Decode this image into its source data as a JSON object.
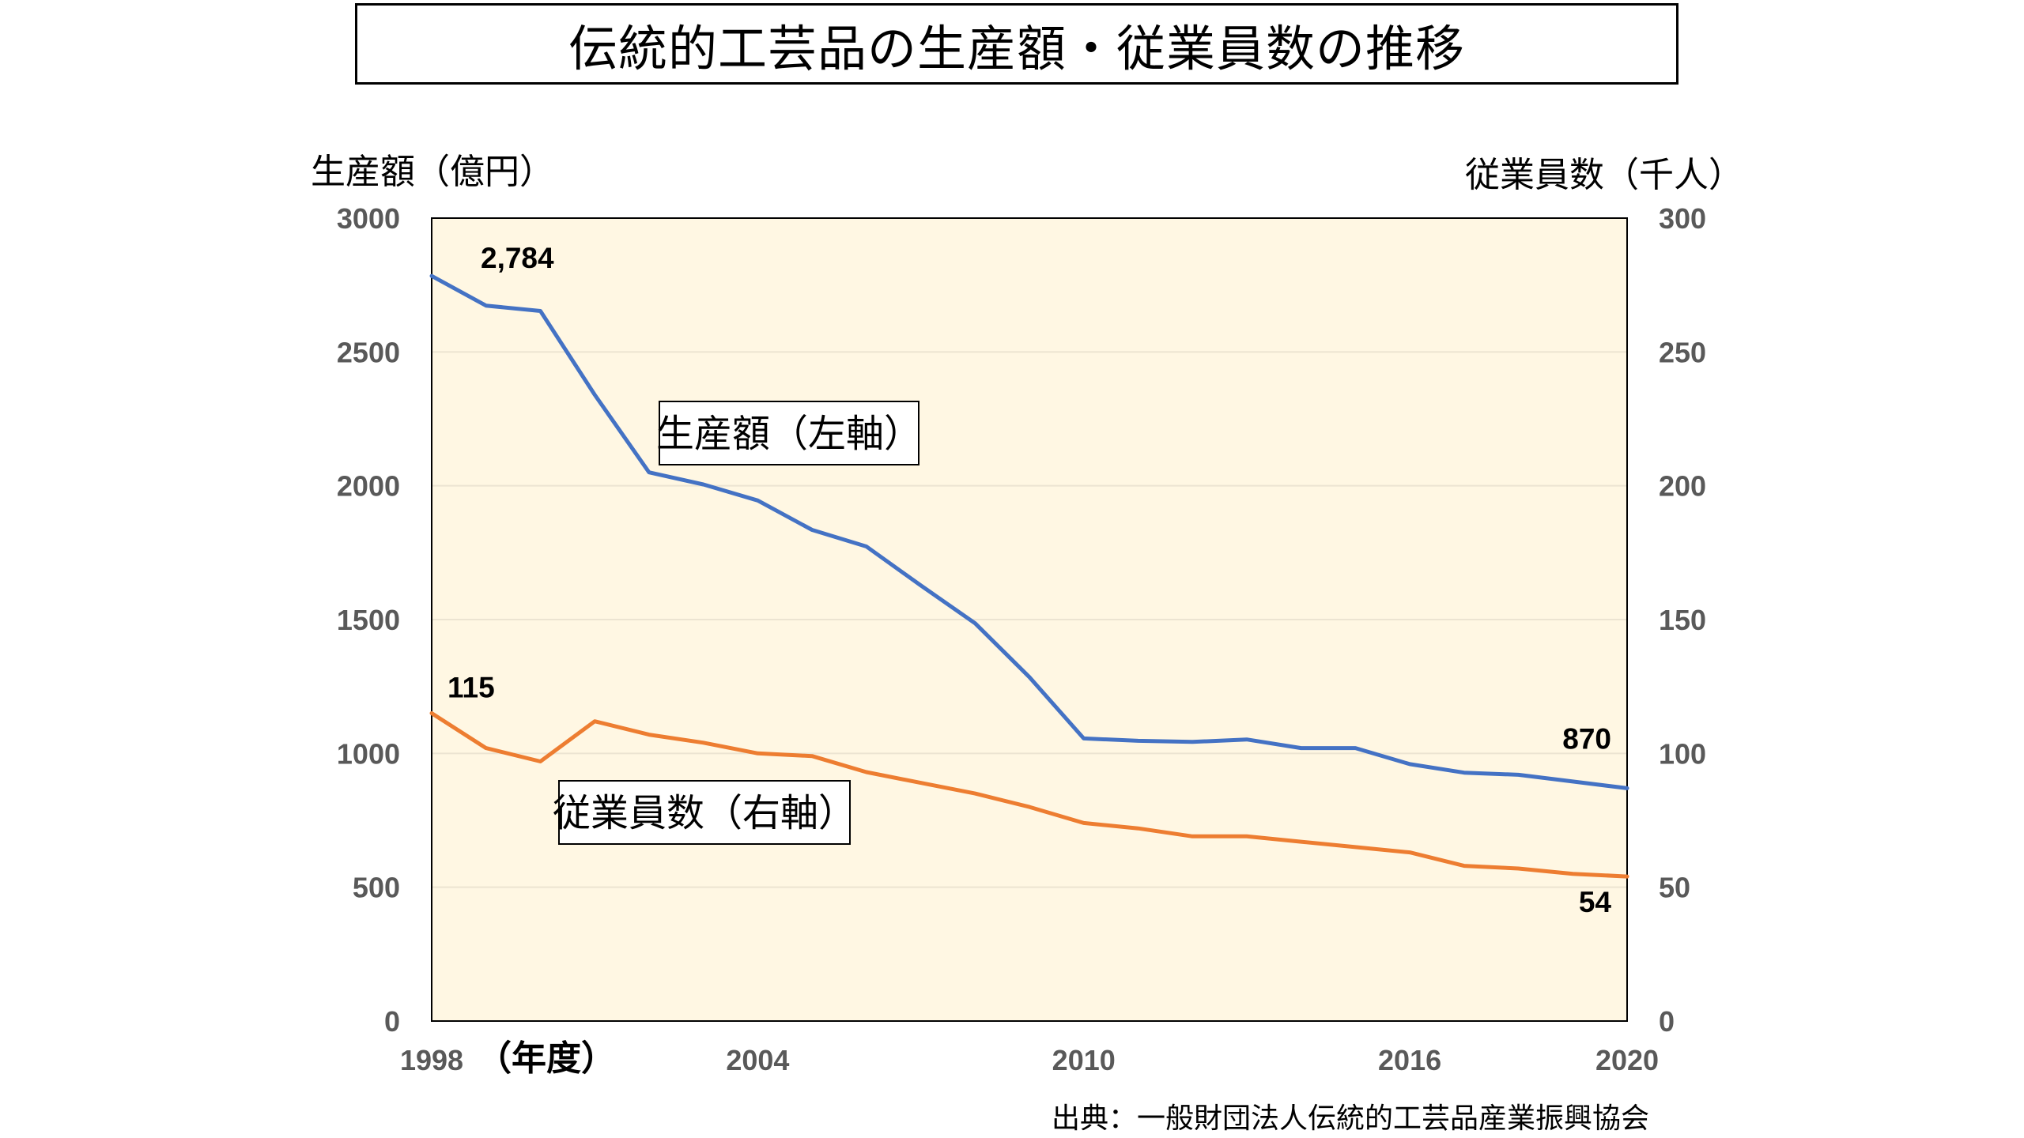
{
  "title": "伝統的工芸品の生産額・従業員数の推移",
  "source": "出典：一般財団法人伝統的工芸品産業振興協会",
  "colors": {
    "plot_bg": "#fff7e3",
    "production": "#4472c4",
    "employees": "#ed7d31",
    "tick": "#595959"
  },
  "chart_data": {
    "type": "line",
    "x_unit_label": "（年度）",
    "x": [
      1998,
      1999,
      2000,
      2001,
      2002,
      2003,
      2004,
      2005,
      2006,
      2007,
      2008,
      2009,
      2010,
      2011,
      2012,
      2013,
      2014,
      2015,
      2016,
      2017,
      2018,
      2019,
      2020
    ],
    "xticks": [
      1998,
      2004,
      2010,
      2016,
      2020
    ],
    "left_axis": {
      "label": "生産額（億円）",
      "ylim": [
        0,
        3000
      ],
      "ticks": [
        0,
        500,
        1000,
        1500,
        2000,
        2500,
        3000
      ]
    },
    "right_axis": {
      "label": "従業員数（千人）",
      "ylim": [
        0,
        300
      ],
      "ticks": [
        0,
        50,
        100,
        150,
        200,
        250,
        300
      ]
    },
    "grid": true,
    "series": [
      {
        "name": "生産額（左軸）",
        "axis": "left",
        "values": [
          2784,
          2673,
          2653,
          2340,
          2050,
          2005,
          1945,
          1835,
          1773,
          1628,
          1486,
          1285,
          1056,
          1047,
          1043,
          1052,
          1020,
          1020,
          960,
          928,
          920,
          895,
          870
        ],
        "labels": [
          {
            "index": 0,
            "text": "2,784"
          },
          {
            "index": 22,
            "text": "870"
          }
        ]
      },
      {
        "name": "従業員数（右軸）",
        "axis": "right",
        "values": [
          115,
          102,
          97,
          112,
          107,
          104,
          100,
          99,
          93,
          89,
          85,
          80,
          74,
          72,
          69,
          69,
          67,
          65,
          63,
          58,
          57,
          55,
          54
        ],
        "labels": [
          {
            "index": 0,
            "text": "115"
          },
          {
            "index": 22,
            "text": "54"
          }
        ]
      }
    ]
  }
}
